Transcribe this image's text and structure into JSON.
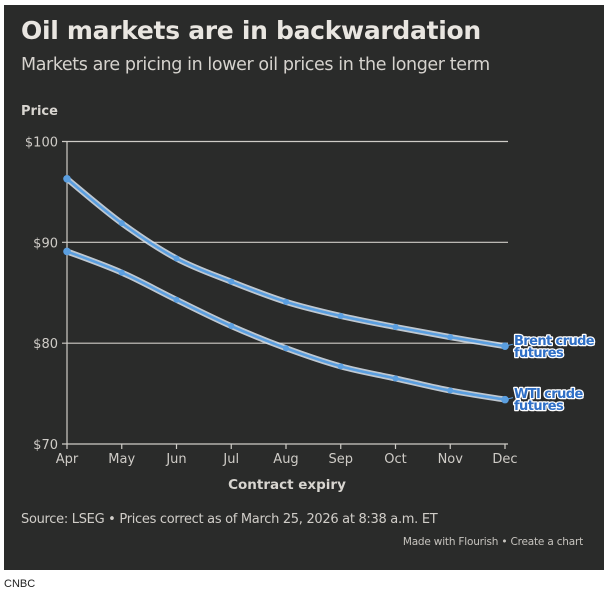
{
  "header": {
    "title": "Oil markets are in backwardation",
    "subtitle": "Markets are pricing in lower oil prices in the longer term"
  },
  "footer": {
    "source": "Source: LSEG • Prices correct as of March 25, 2026 at 8:38 a.m. ET",
    "made_with": "Made with Flourish",
    "separator": " • ",
    "create_chart": "Create a chart"
  },
  "credit": "CNBC",
  "colors": {
    "background": "#2a2b2a",
    "line": "#5b9fe0",
    "line_halo": "#d9e4ee",
    "label_text": "#2f6fc6",
    "label_halo": "#ffffff",
    "grid": "#cfccc7"
  },
  "chart_data": {
    "type": "line",
    "title": "Oil markets are in backwardation",
    "subtitle": "Markets are pricing in lower oil prices in the longer term",
    "xlabel": "Contract expiry",
    "ylabel": "Price",
    "categories": [
      "Apr",
      "May",
      "Jun",
      "Jul",
      "Aug",
      "Sep",
      "Oct",
      "Nov",
      "Dec"
    ],
    "ylim": [
      70,
      100
    ],
    "yticks": [
      70,
      80,
      90,
      100
    ],
    "ytick_labels": [
      "$70",
      "$80",
      "$90",
      "$100"
    ],
    "grid": true,
    "legend": "direct-labels-right",
    "series": [
      {
        "name": "Brent crude futures",
        "label_lines": [
          "Brent crude",
          "futures"
        ],
        "values": [
          96.3,
          91.9,
          88.4,
          86.1,
          84.1,
          82.7,
          81.6,
          80.6,
          79.7
        ]
      },
      {
        "name": "WTI crude futures",
        "label_lines": [
          "WTI crude",
          "futures"
        ],
        "values": [
          89.1,
          87.0,
          84.3,
          81.7,
          79.5,
          77.7,
          76.5,
          75.3,
          74.4
        ]
      }
    ]
  }
}
